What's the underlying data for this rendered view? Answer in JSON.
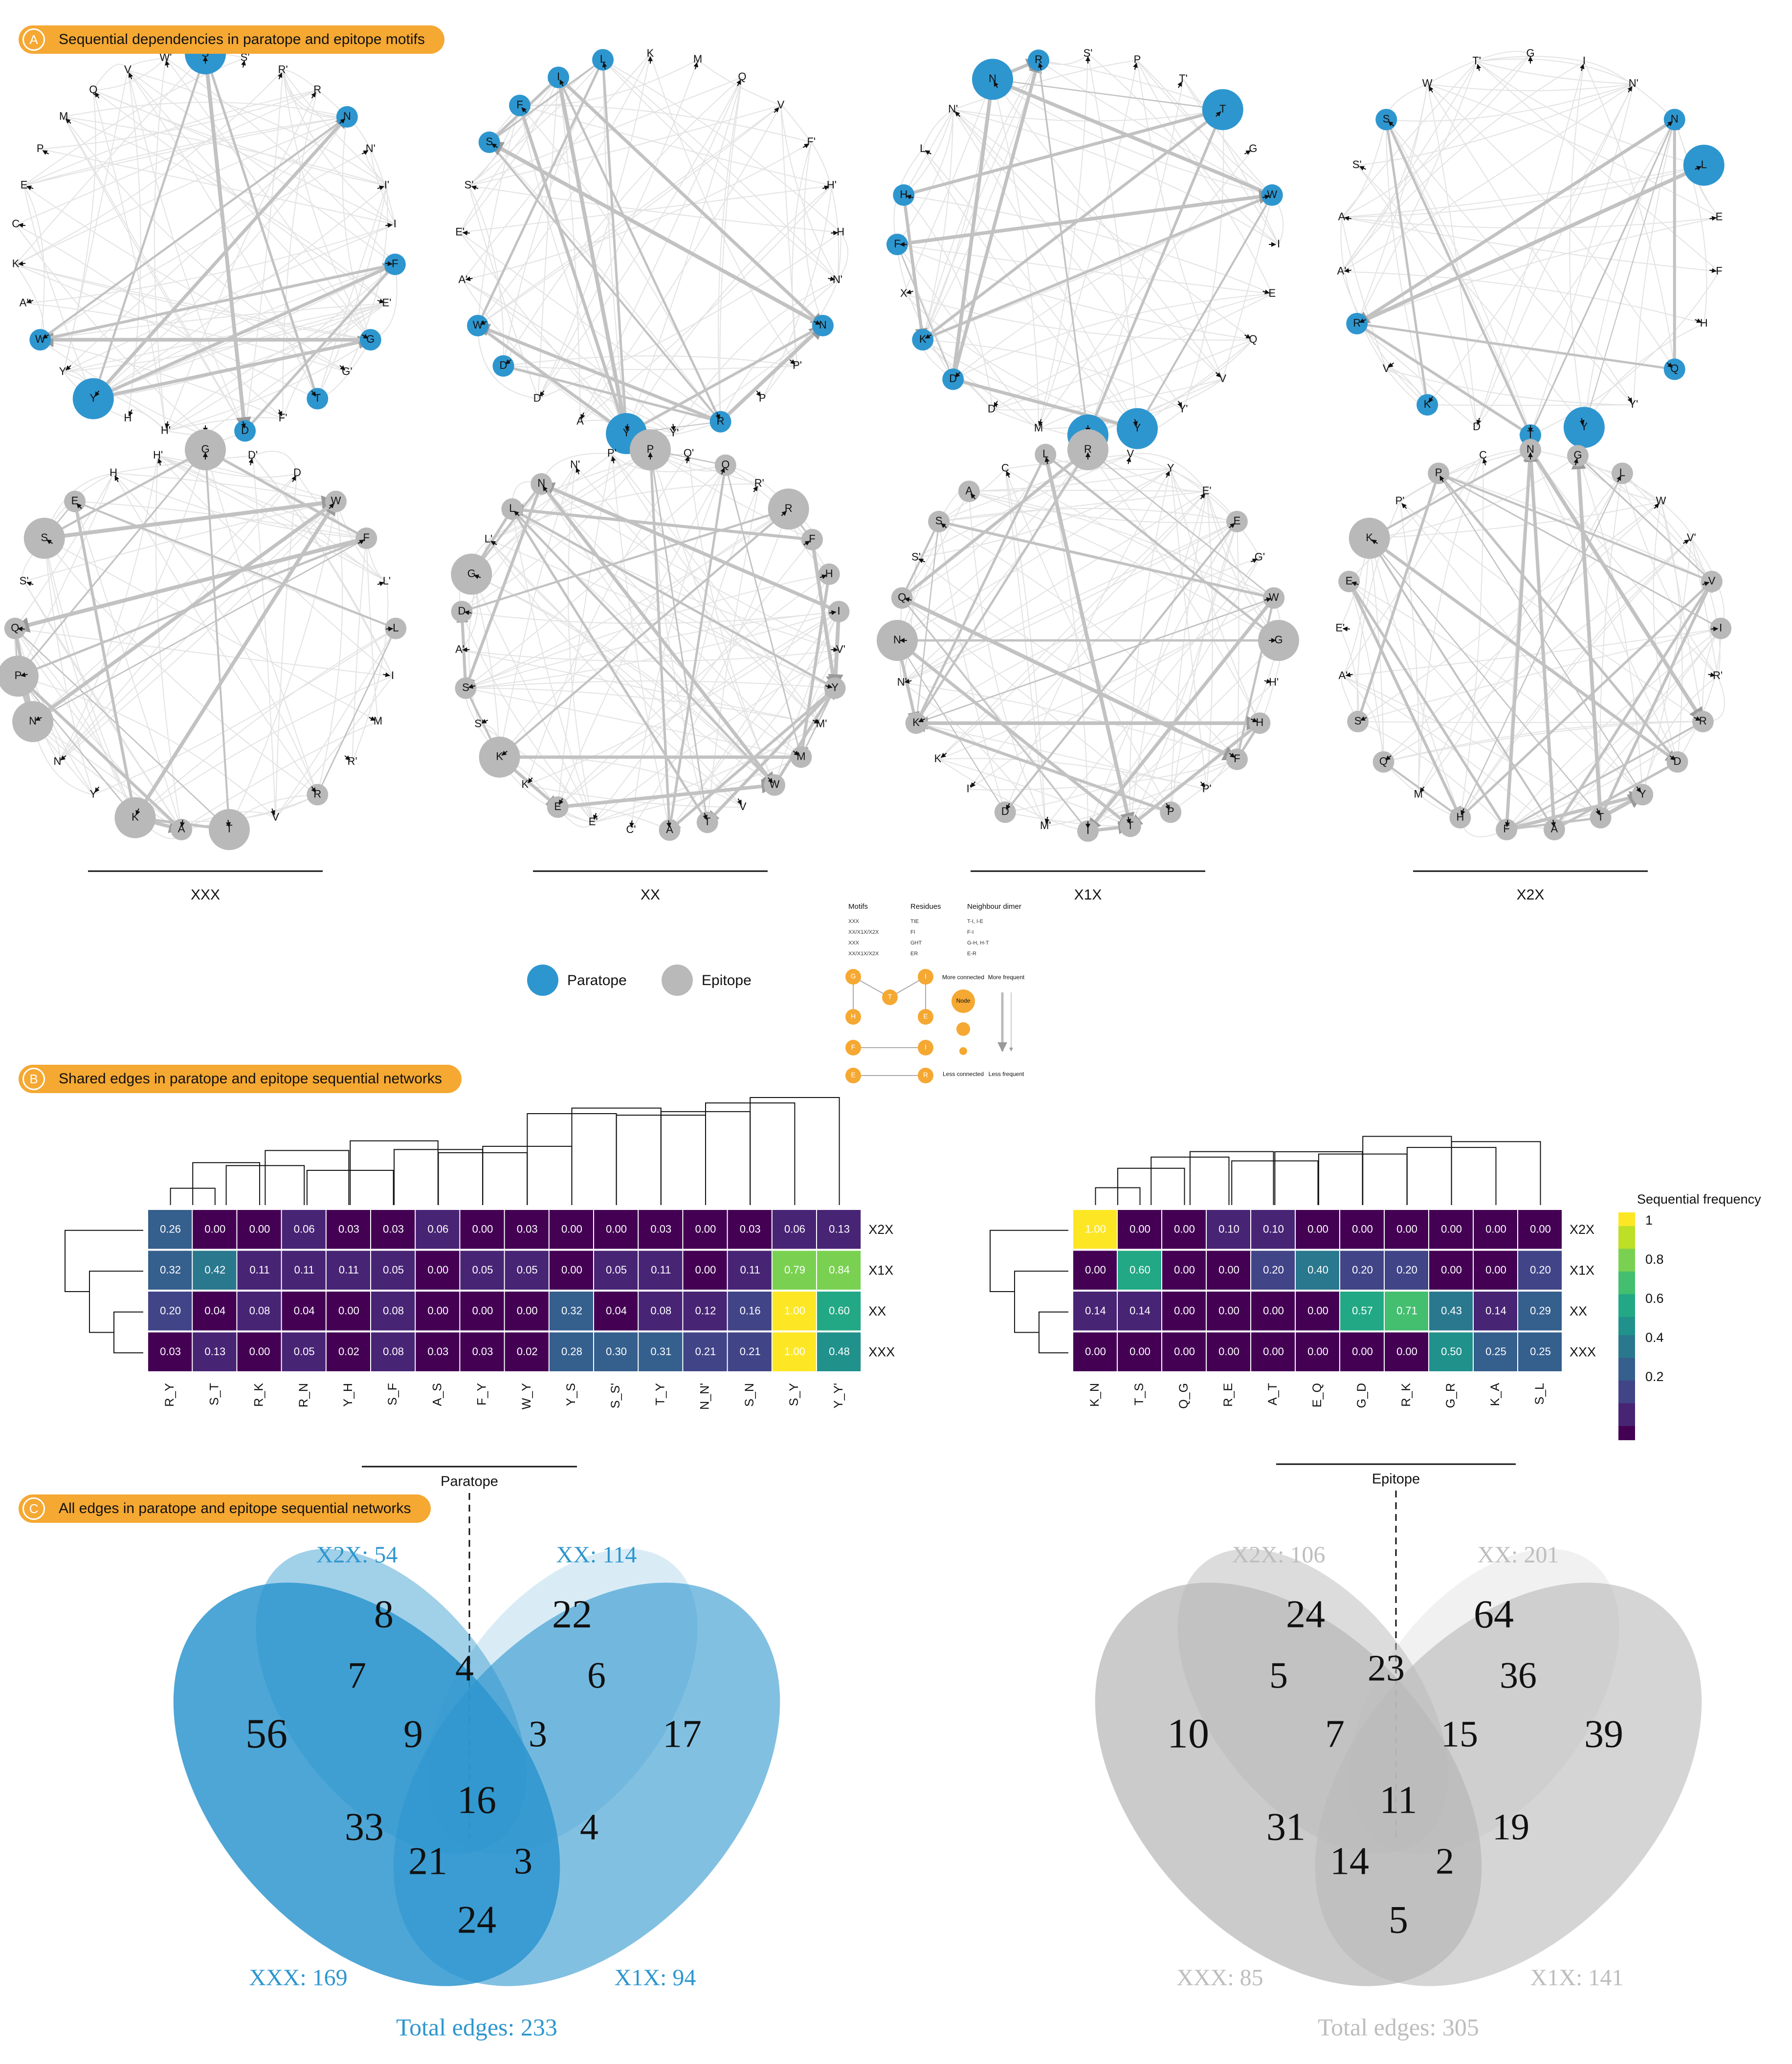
{
  "sections": {
    "a": {
      "letter": "A",
      "title": "Sequential dependencies in paratope and epitope motifs"
    },
    "b": {
      "letter": "B",
      "title": "Shared edges in paratope and epitope sequential networks"
    },
    "c": {
      "letter": "C",
      "title": "All edges in paratope and epitope sequential networks"
    }
  },
  "colors": {
    "paratope": "#2e96cf",
    "epitope": "#b9b9b9",
    "accent": "#f5a832",
    "edge": "#c2c2c2"
  },
  "legend": {
    "paratope": "Paratope",
    "epitope": "Epitope"
  },
  "motif_labels": [
    "XXX",
    "XX",
    "X1X",
    "X2X"
  ],
  "inset": {
    "col_motifs": "Motifs",
    "col_residues": "Residues",
    "col_dimer": "Neighbour dimer",
    "rows": [
      [
        "XXX",
        "TIE",
        "T-I, I-E"
      ],
      [
        "XX/X1X/X2X",
        "FI",
        "F-I"
      ],
      [
        "XXX",
        "GHT",
        "G-H, H-T"
      ],
      [
        "XX/X1X/X2X",
        "ER",
        "E-R"
      ]
    ],
    "nodes": [
      "G",
      "T",
      "I",
      "H",
      "E",
      "F",
      "I",
      "E",
      "R"
    ],
    "node_word": "Node",
    "more_connected": "More connected",
    "less_connected": "Less connected",
    "more_frequent": "More frequent",
    "less_frequent": "Less frequent"
  },
  "chart_data": [
    {
      "type": "network",
      "group": "paratope",
      "motif": "XXX",
      "nodes": [
        "S",
        "S'",
        "R'",
        "R",
        "N",
        "N'",
        "I'",
        "I",
        "F",
        "E'",
        "G",
        "G'",
        "T",
        "F'",
        "D",
        "D'",
        "H'",
        "H",
        "Y",
        "Y'",
        "W",
        "A'",
        "K",
        "C",
        "E",
        "P",
        "M",
        "Q",
        "V",
        "W'"
      ],
      "highlighted": [
        "S",
        "N",
        "F",
        "G",
        "T",
        "D",
        "Y",
        "W"
      ],
      "large": [
        "Y",
        "S"
      ]
    },
    {
      "type": "network",
      "group": "paratope",
      "motif": "XX",
      "nodes": [
        "K",
        "M",
        "Q",
        "V",
        "F'",
        "H'",
        "H",
        "N'",
        "N",
        "P'",
        "P",
        "R",
        "Y'",
        "Y",
        "A",
        "D'",
        "D",
        "W",
        "A'",
        "E'",
        "S'",
        "S",
        "F",
        "I",
        "L"
      ],
      "highlighted": [
        "S",
        "G",
        "W",
        "D",
        "Y",
        "N",
        "R",
        "F",
        "I",
        "L"
      ],
      "large": [
        "Y"
      ]
    },
    {
      "type": "network",
      "group": "paratope",
      "motif": "X1X",
      "nodes": [
        "S'",
        "P",
        "T'",
        "T",
        "G",
        "W",
        "I",
        "E",
        "Q",
        "V",
        "Y'",
        "Y",
        "S",
        "M",
        "D'",
        "D",
        "K",
        "X",
        "F",
        "H",
        "L",
        "N'",
        "N",
        "R"
      ],
      "highlighted": [
        "T",
        "N",
        "R",
        "W",
        "H",
        "F",
        "K",
        "D",
        "S",
        "Y"
      ],
      "large": [
        "T",
        "N",
        "S",
        "Y"
      ]
    },
    {
      "type": "network",
      "group": "paratope",
      "motif": "X2X",
      "nodes": [
        "G",
        "I",
        "N'",
        "N",
        "L",
        "E",
        "F",
        "H",
        "Q",
        "Y'",
        "Y",
        "T",
        "D",
        "K",
        "V",
        "R",
        "A'",
        "A",
        "S'",
        "S",
        "W",
        "T'"
      ],
      "highlighted": [
        "L",
        "Y",
        "Q",
        "R",
        "S",
        "N",
        "T",
        "K"
      ],
      "large": [
        "Y",
        "L"
      ]
    },
    {
      "type": "network",
      "group": "epitope",
      "motif": "XXX",
      "nodes": [
        "G",
        "D'",
        "D",
        "W",
        "F",
        "L'",
        "L",
        "I",
        "M",
        "R'",
        "R",
        "V",
        "T",
        "A",
        "K",
        "Y",
        "N'",
        "N",
        "P",
        "Q",
        "S'",
        "S",
        "E",
        "H",
        "H'"
      ],
      "highlighted": [
        "G",
        "W",
        "F",
        "L",
        "R",
        "T",
        "A",
        "K",
        "N",
        "P",
        "Q",
        "S",
        "E"
      ],
      "large": [
        "G",
        "S",
        "N",
        "P",
        "K",
        "T"
      ]
    },
    {
      "type": "network",
      "group": "epitope",
      "motif": "XX",
      "nodes": [
        "P",
        "Q'",
        "Q",
        "R'",
        "R",
        "F",
        "H",
        "I",
        "V'",
        "Y",
        "M'",
        "M",
        "W",
        "V",
        "T",
        "A",
        "C'",
        "E'",
        "E",
        "K'",
        "K",
        "S'",
        "S",
        "A'",
        "D",
        "G",
        "L'",
        "L",
        "N",
        "N'",
        "P'"
      ],
      "highlighted": [
        "P",
        "Q",
        "R",
        "F",
        "H",
        "I",
        "Y",
        "M",
        "W",
        "T",
        "A",
        "E",
        "K",
        "S",
        "D",
        "G",
        "L",
        "N"
      ],
      "large": [
        "R",
        "K",
        "G",
        "P"
      ]
    },
    {
      "type": "network",
      "group": "epitope",
      "motif": "X1X",
      "nodes": [
        "R",
        "V",
        "Y",
        "E'",
        "E",
        "G'",
        "W",
        "G",
        "H'",
        "H",
        "F",
        "P'",
        "P",
        "T",
        "I",
        "M'",
        "D",
        "I'",
        "K'",
        "K",
        "N'",
        "N",
        "Q",
        "S'",
        "S",
        "A",
        "C",
        "L"
      ],
      "highlighted": [
        "R",
        "E",
        "G",
        "W",
        "H",
        "F",
        "P",
        "T",
        "I",
        "D",
        "K",
        "N",
        "Q",
        "S",
        "A",
        "L"
      ],
      "large": [
        "R",
        "N",
        "G"
      ]
    },
    {
      "type": "network",
      "group": "epitope",
      "motif": "X2X",
      "nodes": [
        "N",
        "G",
        "L",
        "W",
        "V'",
        "V",
        "I",
        "R'",
        "R",
        "D",
        "Y",
        "T",
        "A",
        "F",
        "H",
        "M",
        "Q",
        "S",
        "A'",
        "E'",
        "E",
        "K",
        "P'",
        "P",
        "C"
      ],
      "highlighted": [
        "N",
        "G",
        "L",
        "V",
        "I",
        "R",
        "D",
        "Y",
        "T",
        "A",
        "F",
        "H",
        "Q",
        "S",
        "E",
        "K",
        "P"
      ],
      "large": [
        "K"
      ]
    },
    {
      "type": "heatmap",
      "title": "Paratope",
      "columns": [
        "R_Y",
        "S_T",
        "R_K",
        "R_N",
        "Y_H",
        "S_F",
        "A_S",
        "F_Y",
        "W_Y",
        "Y_S",
        "S_S'",
        "T_Y",
        "N_N'",
        "S_N",
        "S_Y",
        "Y_Y'"
      ],
      "rows": [
        "X2X",
        "X1X",
        "XX",
        "XXX"
      ],
      "values": [
        [
          0.26,
          0.0,
          0.0,
          0.06,
          0.03,
          0.03,
          0.06,
          0.0,
          0.03,
          0.0,
          0.0,
          0.03,
          0.0,
          0.03,
          0.06,
          0.13
        ],
        [
          0.32,
          0.42,
          0.11,
          0.11,
          0.11,
          0.05,
          0.0,
          0.05,
          0.05,
          0.0,
          0.05,
          0.11,
          0.0,
          0.11,
          0.79,
          0.84
        ],
        [
          0.2,
          0.04,
          0.08,
          0.04,
          0.0,
          0.08,
          0.0,
          0.0,
          0.0,
          0.32,
          0.04,
          0.08,
          0.12,
          0.16,
          1.0,
          0.6
        ],
        [
          0.03,
          0.13,
          0.0,
          0.05,
          0.02,
          0.08,
          0.03,
          0.03,
          0.02,
          0.28,
          0.3,
          0.31,
          0.21,
          0.21,
          1.0,
          0.48
        ]
      ]
    },
    {
      "type": "heatmap",
      "title": "Epitope",
      "columns": [
        "K_N",
        "T_S",
        "Q_G",
        "R_E",
        "A_T",
        "E_Q",
        "G_D",
        "R_K",
        "G_R",
        "K_A",
        "S_L"
      ],
      "rows": [
        "X2X",
        "X1X",
        "XX",
        "XXX"
      ],
      "values": [
        [
          1.0,
          0.0,
          0.0,
          0.1,
          0.1,
          0.0,
          0.0,
          0.0,
          0.0,
          0.0,
          0.0
        ],
        [
          0.0,
          0.6,
          0.0,
          0.0,
          0.2,
          0.4,
          0.2,
          0.2,
          0.0,
          0.0,
          0.2
        ],
        [
          0.14,
          0.14,
          0.0,
          0.0,
          0.0,
          0.0,
          0.57,
          0.71,
          0.43,
          0.14,
          0.29
        ],
        [
          0.0,
          0.0,
          0.0,
          0.0,
          0.0,
          0.0,
          0.0,
          0.0,
          0.5,
          0.25,
          0.25
        ]
      ],
      "colorbar": {
        "title": "Sequential frequency",
        "ticks": [
          "1",
          "0.8",
          "0.6",
          "0.4",
          "0.2"
        ]
      }
    },
    {
      "type": "venn",
      "group": "paratope",
      "sets": [
        "X2X: 54",
        "XX: 114",
        "XXX: 169",
        "X1X: 94"
      ],
      "regions": [
        "8",
        "22",
        "7",
        "4",
        "6",
        "56",
        "9",
        "3",
        "17",
        "16",
        "33",
        "4",
        "21",
        "3",
        "24"
      ],
      "total": "Total edges: 233"
    },
    {
      "type": "venn",
      "group": "epitope",
      "sets": [
        "X2X: 106",
        "XX: 201",
        "XXX: 85",
        "X1X: 141"
      ],
      "regions": [
        "24",
        "64",
        "5",
        "23",
        "36",
        "10",
        "7",
        "15",
        "39",
        "11",
        "31",
        "19",
        "14",
        "2",
        "5"
      ],
      "total": "Total edges: 305"
    }
  ]
}
